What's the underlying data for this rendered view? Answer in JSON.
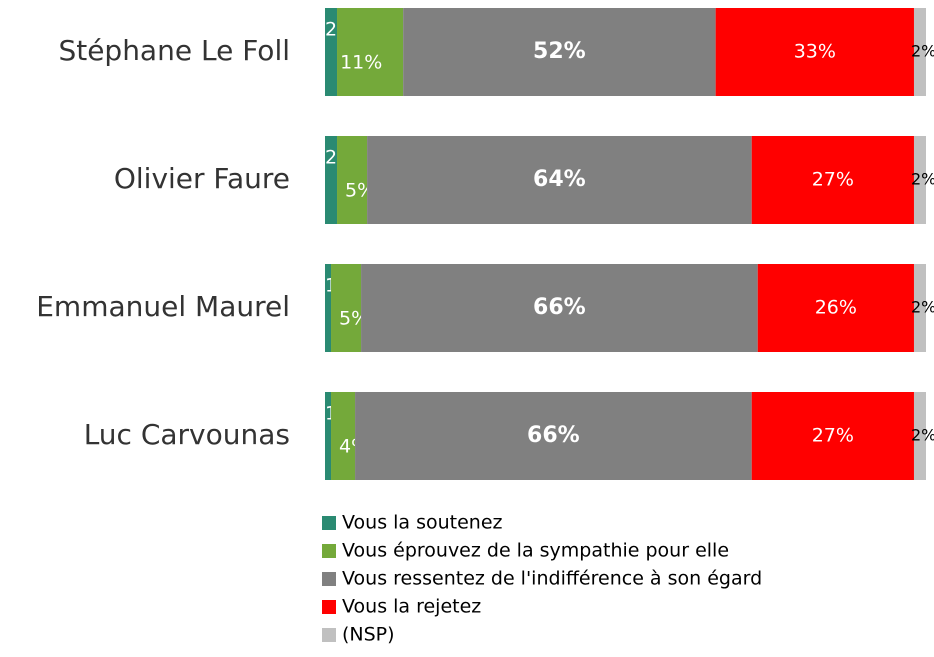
{
  "chart_data": {
    "type": "stacked_bar_horizontal",
    "categories": [
      "Stéphane Le Foll",
      "Olivier Faure",
      "Emmanuel Maurel",
      "Luc Carvounas"
    ],
    "xlim": [
      0,
      100
    ],
    "series": [
      {
        "name": "Vous la soutenez",
        "color": "#2a8a72",
        "values": [
          2,
          2,
          1,
          1
        ],
        "value_labels": [
          "2%",
          "2%",
          "1%",
          "1%"
        ]
      },
      {
        "name": "Vous éprouvez de la sympathie pour elle",
        "color": "#74a93a",
        "values": [
          11,
          5,
          5,
          4
        ],
        "value_labels": [
          "11%",
          "5%",
          "5%",
          "4%"
        ]
      },
      {
        "name": "Vous ressentez de l'indifférence à son égard",
        "color": "#808080",
        "values": [
          52,
          64,
          66,
          66
        ],
        "value_labels": [
          "52%",
          "64%",
          "66%",
          "66%"
        ]
      },
      {
        "name": "Vous la rejetez",
        "color": "#ff0000",
        "values": [
          33,
          27,
          26,
          27
        ],
        "value_labels": [
          "33%",
          "27%",
          "26%",
          "27%"
        ]
      },
      {
        "name": "(NSP)",
        "color": "#c0c0c0",
        "values": [
          2,
          2,
          2,
          2
        ],
        "value_labels": [
          "2%",
          "2%",
          "2%",
          "2%"
        ]
      }
    ]
  }
}
